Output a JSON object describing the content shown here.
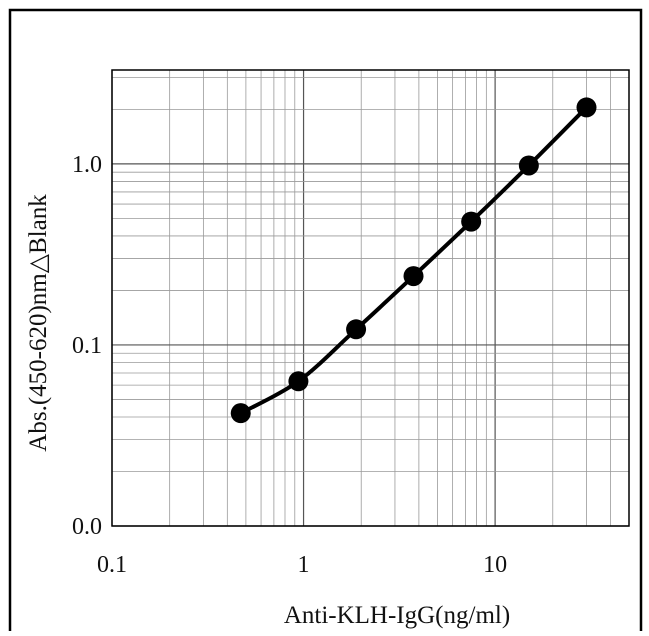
{
  "chart_data": {
    "type": "line",
    "x_scale": "log",
    "y_scale": "log",
    "xlim": [
      0.1,
      50
    ],
    "ylim": [
      0.01,
      3.3
    ],
    "x_ticks": [
      {
        "value": 0.1,
        "label": "0.1"
      },
      {
        "value": 1,
        "label": "1"
      },
      {
        "value": 10,
        "label": "10"
      }
    ],
    "y_ticks": [
      {
        "value": 0.01,
        "label": "0.0"
      },
      {
        "value": 0.1,
        "label": "0.1"
      },
      {
        "value": 1,
        "label": "1.0"
      }
    ],
    "xlabel": "Anti-KLH-IgG(ng/ml)",
    "ylabel": "Abs.(450-620)nm△Blank",
    "grid": true,
    "series": [
      {
        "color": "#000000",
        "marker": "circle",
        "x": [
          0.47,
          0.94,
          1.88,
          3.75,
          7.5,
          15,
          30
        ],
        "y": [
          0.042,
          0.063,
          0.122,
          0.24,
          0.48,
          0.98,
          2.05
        ]
      }
    ]
  }
}
